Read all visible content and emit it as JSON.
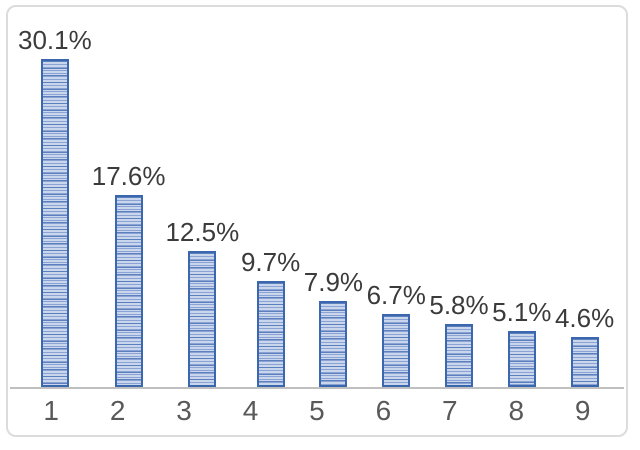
{
  "chart_data": {
    "type": "bar",
    "title": "",
    "xlabel": "",
    "ylabel": "",
    "categories": [
      "1",
      "2",
      "3",
      "4",
      "5",
      "6",
      "7",
      "8",
      "9"
    ],
    "values": [
      30.1,
      17.6,
      12.5,
      9.7,
      7.9,
      6.7,
      5.8,
      5.1,
      4.6
    ],
    "data_labels": [
      "30.1%",
      "17.6%",
      "12.5%",
      "9.7%",
      "7.9%",
      "6.7%",
      "5.8%",
      "5.1%",
      "4.6%"
    ],
    "ylim": [
      0,
      33
    ],
    "grid": false,
    "legend": false,
    "bar_fill_style": "horizontal-stripes",
    "colors": {
      "bar_border": "#3a67ad",
      "bar_fill_light": "#c9d6ec",
      "bar_stripe": "#8aa3d4",
      "bar_stripe_dark": "#5c80bd",
      "axis_line": "#bfbfbf",
      "data_label_text": "#3b3b3b",
      "tick_label_text": "#595959",
      "frame_border": "#dcdcdc",
      "background": "#ffffff"
    }
  }
}
